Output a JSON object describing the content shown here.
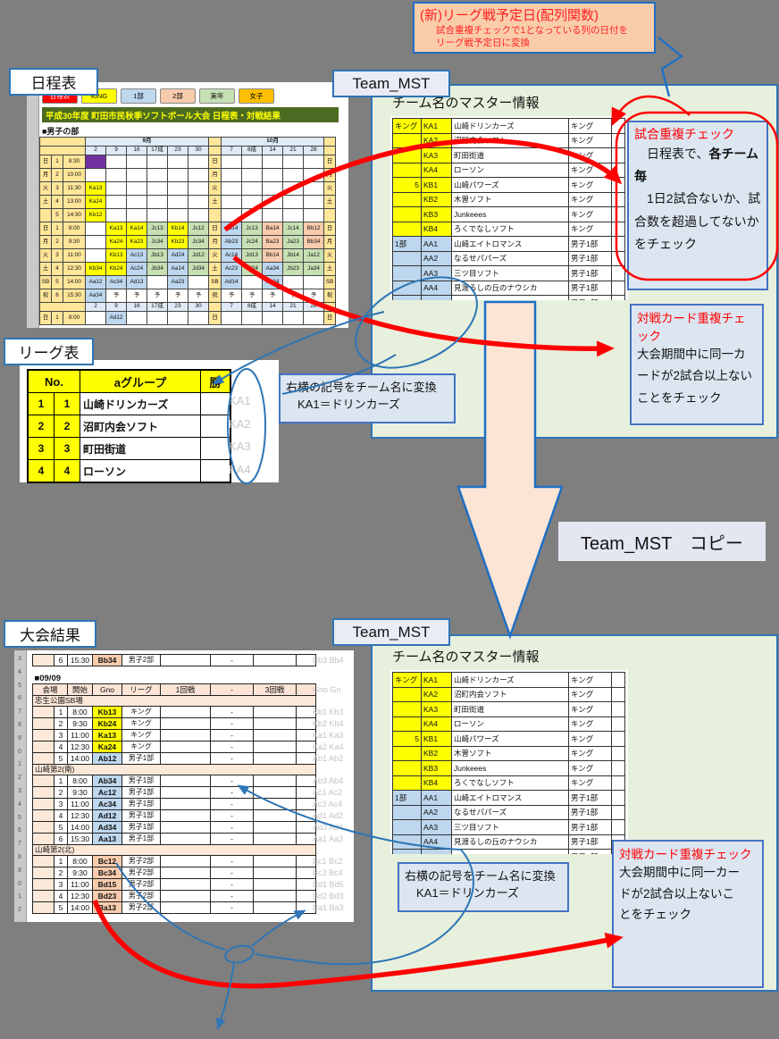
{
  "colors": {
    "accent_blue": "#2E75B6",
    "annotation_red": "#FF0000",
    "panel_green": "#E7F0DC",
    "info_box_blue": "#DCE6F1",
    "callout_orange": "#FACDAA",
    "big_arrow_fill": "#FCE5D5",
    "page_bg": "#7F7F7F"
  },
  "callout_top": {
    "title": "(新)リーグ戦予定日(配列関数)",
    "line1": "試合重複チェックで1となっている列の日付を",
    "line2": "リーグ戦予定日に変換"
  },
  "labels": {
    "schedule": "日程表",
    "team_mst_top": "Team_MST",
    "league": "リーグ表",
    "results": "大会結果",
    "team_mst_bottom": "Team_MST",
    "team_mst_copy": "Team_MST　コピー"
  },
  "schedule_sheet": {
    "tabs": [
      {
        "label": "日程表",
        "color": "#FF0000",
        "text": "#FFFFFF"
      },
      {
        "label": "KING",
        "color": "#FFFF00"
      },
      {
        "label": "1部",
        "color": "#BDD7EE"
      },
      {
        "label": "2部",
        "color": "#F8CBAD"
      },
      {
        "label": "実年",
        "color": "#C6E0B4"
      },
      {
        "label": "女子",
        "color": "#FFC000"
      }
    ],
    "title": "平成30年度 町田市民秋季ソフトボール大会 日程表・対戦結果",
    "section": "■男子の部",
    "month1": "9月",
    "month2": "10月",
    "dates_sep": [
      "2",
      "9",
      "16",
      "17成",
      "23",
      "30"
    ],
    "dates_oct": [
      "7",
      "8成",
      "14",
      "21",
      "28"
    ],
    "block1": [
      {
        "wd": "日",
        "no": "1",
        "time": "8:30",
        "sep": [
          "v:",
          "",
          "",
          "",
          "",
          ""
        ],
        "oct": [
          "",
          "",
          "",
          "",
          ""
        ]
      },
      {
        "wd": "月",
        "no": "2",
        "time": "10:00",
        "sep": [
          "",
          "",
          "",
          "",
          "",
          ""
        ],
        "oct": [
          "",
          "",
          "",
          "",
          ""
        ]
      },
      {
        "wd": "火",
        "no": "3",
        "time": "11:30",
        "sep": [
          "y:Ka13",
          "",
          "",
          "",
          "",
          ""
        ],
        "oct": [
          "",
          "",
          "",
          "",
          ""
        ]
      },
      {
        "wd": "土",
        "no": "4",
        "time": "13:00",
        "sep": [
          "y:Ka24",
          "",
          "",
          "",
          "",
          ""
        ],
        "oct": [
          "",
          "",
          "",
          "",
          ""
        ]
      },
      {
        "wd": "",
        "no": "5",
        "time": "14:30",
        "sep": [
          "y:Kb12",
          "",
          "",
          "",
          "",
          ""
        ],
        "oct": [
          "",
          "",
          "",
          "",
          ""
        ]
      }
    ],
    "block2": [
      {
        "wd": "日",
        "no": "1",
        "time": "8:00",
        "sep": [
          "",
          "y:Ka13",
          "y:Ka14",
          "g:Jc13",
          "y:Kb14",
          "g:Jc12"
        ],
        "oct": [
          "b:Ab14",
          "g:Jc13",
          "p:Ba14",
          "g:Jc14",
          "p:Bb12"
        ]
      },
      {
        "wd": "月",
        "no": "2",
        "time": "9:30",
        "sep": [
          "",
          "y:Ka24",
          "y:Ka23",
          "g:Jc34",
          "y:Kb23",
          "g:Jc34"
        ],
        "oct": [
          "b:Ab23",
          "g:Jc24",
          "p:Ba23",
          "g:Ja23",
          "p:Bb34"
        ]
      },
      {
        "wd": "火",
        "no": "3",
        "time": "11:00",
        "sep": [
          "",
          "y:Kb13",
          "b:Ac13",
          "g:Jb13",
          "b:Ad24",
          "g:Jd12"
        ],
        "oct": [
          "b:Ac14",
          "g:Jd13",
          "p:Bb14",
          "g:Jb14",
          "g:Ja12"
        ]
      },
      {
        "wd": "土",
        "no": "4",
        "time": "12:30",
        "sep": [
          "y:Kb34",
          "y:Kb24",
          "b:Ac24",
          "g:Jb34",
          "b:Aa14",
          "g:Jd34"
        ],
        "oct": [
          "b:Ac23",
          "g:Jd24",
          "b:Aa34",
          "g:Jb23",
          "g:Ja34"
        ]
      },
      {
        "wd": "SB",
        "no": "5",
        "time": "14:00",
        "sep": [
          "b:Aa12",
          "b:Ac34",
          "b:Ad13",
          "",
          "b:Aa23",
          ""
        ],
        "oct": [
          "b:Ad14",
          "",
          "b:Aa24",
          "",
          ""
        ]
      },
      {
        "wd": "祝",
        "no": "6",
        "time": "15:30",
        "sep": [
          "b:Aa34",
          "予",
          "予",
          "予",
          "予",
          "予"
        ],
        "oct": [
          "予",
          "予",
          "予",
          "予",
          "予"
        ]
      }
    ],
    "block3": [
      {
        "wd": "日",
        "no": "1",
        "time": "8:00",
        "sep": [
          "",
          "b:Ad12",
          "",
          "",
          "",
          ""
        ],
        "oct": [
          "",
          "",
          "",
          "",
          ""
        ]
      }
    ]
  },
  "master_table": {
    "heading": "チーム名のマスター情報",
    "rows": [
      {
        "sec": "k",
        "group": "キング",
        "code": "KA1",
        "team": "山崎ドリンカーズ",
        "div": "キング"
      },
      {
        "sec": "k",
        "code": "KA2",
        "team": "沼町内会ソフト",
        "div": "キング"
      },
      {
        "sec": "k",
        "code": "KA3",
        "team": "町田街道",
        "div": "キング"
      },
      {
        "sec": "k",
        "code": "KA4",
        "team": "ローソン",
        "div": "キング"
      },
      {
        "sec": "k",
        "pre": "5",
        "code": "KB1",
        "team": "山崎パワーズ",
        "div": "キング"
      },
      {
        "sec": "k",
        "code": "KB2",
        "team": "木曽ソフト",
        "div": "キング"
      },
      {
        "sec": "k",
        "code": "KB3",
        "team": "Junkeees",
        "div": "キング"
      },
      {
        "sec": "k",
        "code": "KB4",
        "team": "ろくでなしソフト",
        "div": "キング"
      },
      {
        "sec": "a",
        "group": "1部",
        "code": "AA1",
        "team": "山崎エイトロマンス",
        "div": "男子1部"
      },
      {
        "sec": "a",
        "code": "AA2",
        "team": "なるせパパーズ",
        "div": "男子1部"
      },
      {
        "sec": "a",
        "code": "AA3",
        "team": "三ツ目ソフト",
        "div": "男子1部"
      },
      {
        "sec": "a",
        "code": "AA4",
        "team": "見渡るしの丘のナウシカ",
        "div": "男子1部"
      },
      {
        "sec": "a",
        "pre": "5",
        "code": "AB1",
        "team": "",
        "div": "男子1部"
      }
    ]
  },
  "check1": {
    "title": "試合重複チェック",
    "body_pre": "　日程表で、",
    "body_bold": "各チーム毎",
    "body_rest": "　1日2試合ないか、試合数を超過してないかをチェック"
  },
  "card_check": {
    "title": "対戦カード重複チェック",
    "body": "大会期間中に同一カードが2試合以上ないことをチェック"
  },
  "convert_note": {
    "line1": "右横の記号をチーム名に変換",
    "line2": "　KA1＝ドリンカーズ"
  },
  "league_table": {
    "headers": [
      "No.",
      "aグループ",
      "勝"
    ],
    "rows": [
      [
        "1",
        "1",
        "山崎ドリンカーズ"
      ],
      [
        "2",
        "2",
        "沼町内会ソフト"
      ],
      [
        "3",
        "3",
        "町田街道"
      ],
      [
        "4",
        "4",
        "ローソン"
      ]
    ],
    "codes": [
      "KA1",
      "KA2",
      "KA3",
      "KA4"
    ]
  },
  "results_sheet": {
    "date_label": "■09/09",
    "headers": [
      "会場",
      "開始",
      "Gno",
      "リーグ",
      "1回戦",
      "-",
      "3回戦",
      ""
    ],
    "dash": "-",
    "gutter": [
      "3",
      "4",
      "5",
      "6",
      "7",
      "8",
      "9",
      "0",
      "1",
      "2",
      "3",
      "4",
      "5",
      "6",
      "7",
      "8",
      "9",
      "0",
      "1",
      "2"
    ],
    "rows": [
      {
        "t": "partial",
        "no": "6",
        "time": "15:30",
        "code": "p:Bb34",
        "lg": "男子2部",
        "out": "Bb3 Bb4"
      },
      {
        "t": "spacer"
      },
      {
        "t": "date",
        "out": ""
      },
      {
        "t": "header",
        "out": "Gno Gn"
      },
      {
        "t": "band",
        "label": "忠生公園SB場"
      },
      {
        "t": "row",
        "no": "1",
        "time": "8:00",
        "code": "y:Kb13",
        "lg": "キング",
        "out": "Kb1 Kb3"
      },
      {
        "t": "row",
        "no": "2",
        "time": "9:30",
        "code": "y:Kb24",
        "lg": "キング",
        "out": "Kb2 Kb4"
      },
      {
        "t": "row",
        "no": "3",
        "time": "11:00",
        "code": "y:Ka13",
        "lg": "キング",
        "out": "Ka1 Ka3"
      },
      {
        "t": "row",
        "no": "4",
        "time": "12:30",
        "code": "y:Ka24",
        "lg": "キング",
        "out": "Ka2 Ka4"
      },
      {
        "t": "row",
        "no": "5",
        "time": "14:00",
        "code": "b:Ab12",
        "lg": "男子1部",
        "out": "Ab1 Ab2"
      },
      {
        "t": "band",
        "label": "山崎第2(南)"
      },
      {
        "t": "row",
        "no": "1",
        "time": "8:00",
        "code": "b:Ab34",
        "lg": "男子1部",
        "out": "Ab3 Ab4"
      },
      {
        "t": "row",
        "no": "2",
        "time": "9:30",
        "code": "b:Ac12",
        "lg": "男子1部",
        "out": "Ac1 Ac2"
      },
      {
        "t": "row",
        "no": "3",
        "time": "11:00",
        "code": "b:Ac34",
        "lg": "男子1部",
        "out": "Ac3 Ac4"
      },
      {
        "t": "row",
        "no": "4",
        "time": "12:30",
        "code": "b:Ad12",
        "lg": "男子1部",
        "out": "Ad1 Ad2"
      },
      {
        "t": "row",
        "no": "5",
        "time": "14:00",
        "code": "b:Ad34",
        "lg": "男子1部",
        "out": "Ad3 Ad4"
      },
      {
        "t": "row",
        "no": "6",
        "time": "15:30",
        "code": "b:Aa13",
        "lg": "男子1部",
        "out": "Aa1 Aa3"
      },
      {
        "t": "band",
        "label": "山崎第2(北)"
      },
      {
        "t": "row",
        "no": "1",
        "time": "8:00",
        "code": "p:Bc12",
        "lg": "男子2部",
        "out": "Bc1 Bc2"
      },
      {
        "t": "row",
        "no": "2",
        "time": "9:30",
        "code": "p:Bc34",
        "lg": "男子2部",
        "out": "Bc3 Bc4"
      },
      {
        "t": "row",
        "no": "3",
        "time": "11:00",
        "code": "p:Bd15",
        "lg": "男子2部",
        "out": "Bd1 Bd5"
      },
      {
        "t": "row",
        "no": "4",
        "time": "12:30",
        "code": "p:Bd23",
        "lg": "男子2部",
        "out": "Bd2 Bd3"
      },
      {
        "t": "row",
        "no": "5",
        "time": "14:00",
        "code": "p:Ba13",
        "lg": "男子2部",
        "out": "Ba1 Ba3"
      }
    ]
  }
}
